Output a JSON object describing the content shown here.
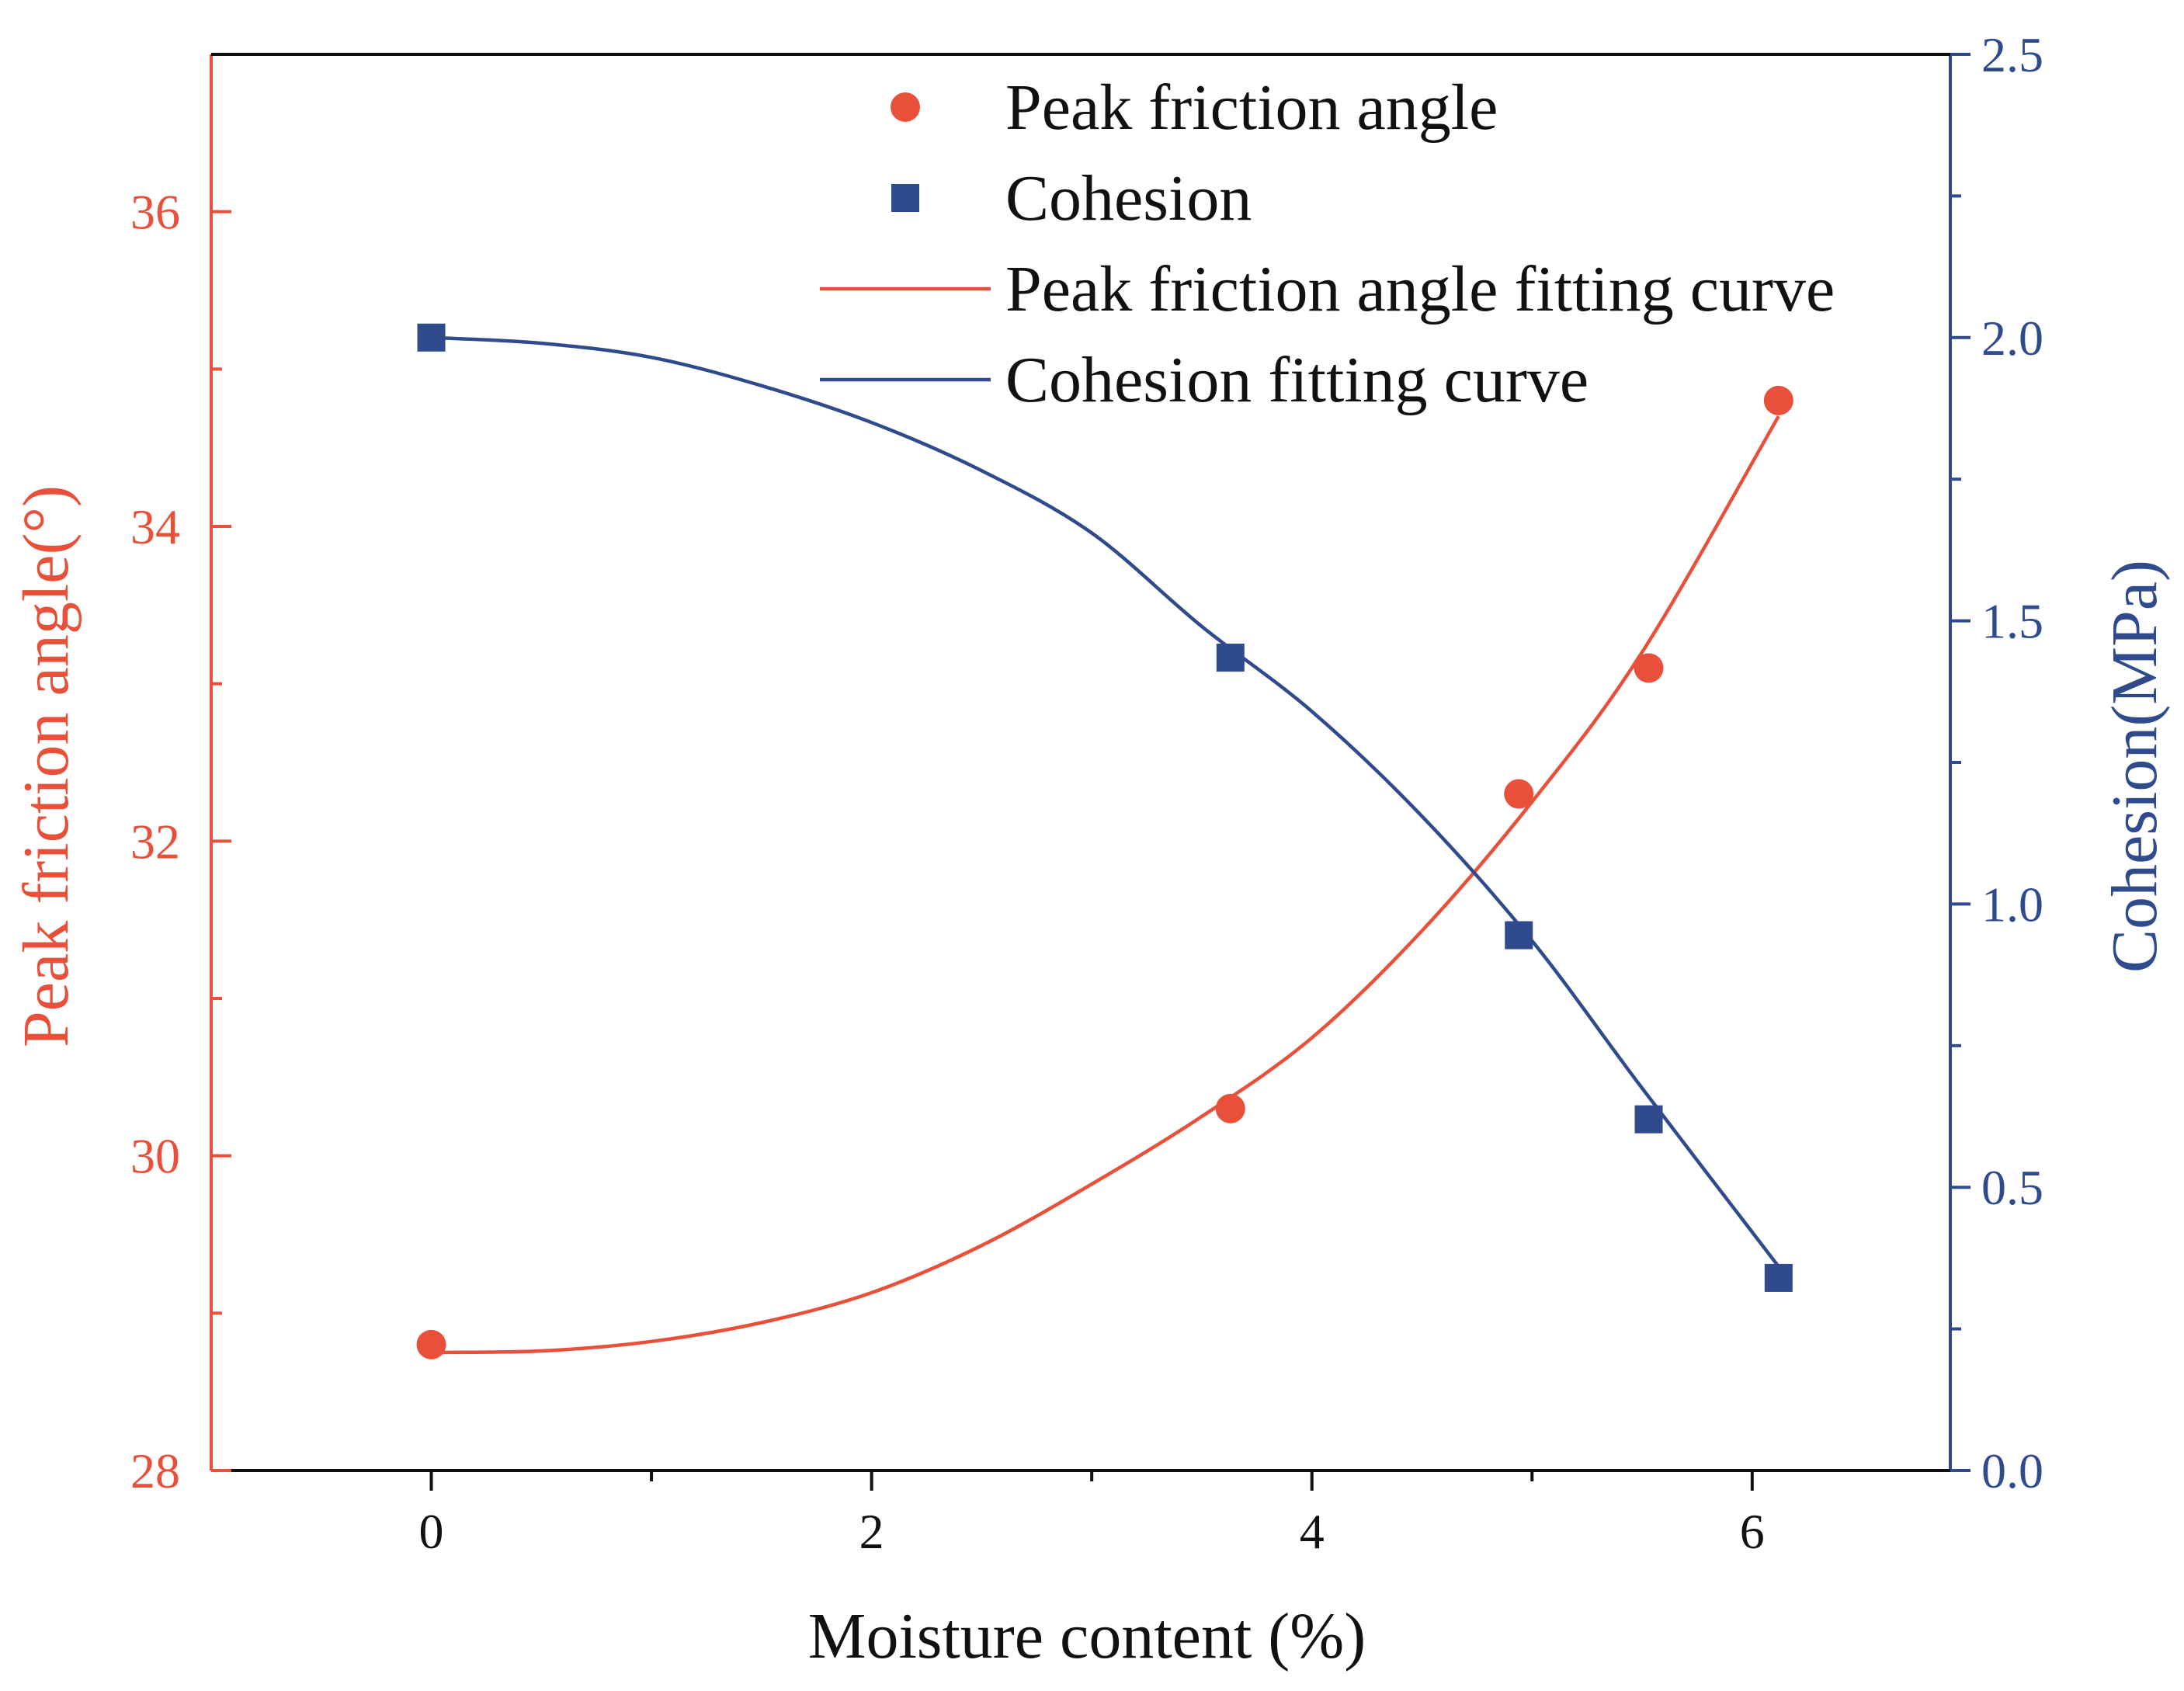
{
  "chart_data": {
    "type": "scatter",
    "title": "",
    "xlabel": "Moisture content (%)",
    "ylabel_left": "Peak friction angle(°)",
    "ylabel_right": "Cohesion(MPa)",
    "xlim": [
      -1.0,
      6.9
    ],
    "ylim_left": [
      28,
      37
    ],
    "ylim_right": [
      0.0,
      2.5
    ],
    "x_ticks": [
      "0",
      "2",
      "4",
      "6"
    ],
    "x_tick_values": [
      0,
      2,
      4,
      6
    ],
    "x_minor_tick_values": [
      1,
      3,
      5
    ],
    "y_left_ticks": [
      "28",
      "30",
      "32",
      "34",
      "36"
    ],
    "y_left_tick_values": [
      28,
      30,
      32,
      34,
      36
    ],
    "y_left_minor_tick_values": [
      29,
      31,
      33,
      35
    ],
    "y_right_ticks": [
      "0.0",
      "0.5",
      "1.0",
      "1.5",
      "2.0",
      "2.5"
    ],
    "y_right_tick_values": [
      0.0,
      0.5,
      1.0,
      1.5,
      2.0,
      2.5
    ],
    "y_right_minor_tick_values": [
      0.25,
      0.75,
      1.25,
      1.75,
      2.25
    ],
    "series": [
      {
        "name": "Peak friction angle",
        "kind": "scatter",
        "marker": "circle",
        "axis": "left",
        "color": "#e8503a",
        "x": [
          0,
          3.63,
          4.94,
          5.53,
          6.12
        ],
        "y": [
          28.8,
          30.3,
          32.3,
          33.1,
          34.8
        ]
      },
      {
        "name": "Cohesion",
        "kind": "scatter",
        "marker": "square",
        "axis": "right",
        "color": "#2f4b8c",
        "x": [
          0,
          3.63,
          4.94,
          5.53,
          6.12
        ],
        "y": [
          2.0,
          1.435,
          0.945,
          0.62,
          0.34
        ]
      },
      {
        "name": "Peak friction angle fitting curve",
        "kind": "line",
        "axis": "left",
        "color": "#e8503a",
        "x": [
          0,
          0.5,
          1.0,
          1.5,
          2.0,
          2.5,
          3.0,
          3.5,
          4.0,
          4.5,
          5.0,
          5.5,
          6.12
        ],
        "y": [
          28.75,
          28.76,
          28.82,
          28.94,
          29.13,
          29.43,
          29.82,
          30.25,
          30.75,
          31.43,
          32.25,
          33.2,
          34.7
        ]
      },
      {
        "name": "Cohesion fitting curve",
        "kind": "line",
        "axis": "right",
        "color": "#2f4b8c",
        "x": [
          0,
          0.5,
          1.0,
          1.5,
          2.0,
          2.5,
          3.0,
          3.5,
          4.0,
          4.5,
          5.0,
          5.5,
          6.12
        ],
        "y": [
          2.0,
          1.99,
          1.965,
          1.915,
          1.85,
          1.765,
          1.655,
          1.49,
          1.34,
          1.155,
          0.935,
          0.675,
          0.36
        ]
      }
    ],
    "legend": {
      "placement": "top-center",
      "entries": [
        "Peak friction angle",
        "Cohesion",
        "Peak friction angle fitting curve",
        "Cohesion fitting curve"
      ]
    },
    "grid": false
  },
  "colors": {
    "left_axis": "#e8503a",
    "right_axis": "#2f4b8c",
    "bottom_axis": "#111111"
  }
}
